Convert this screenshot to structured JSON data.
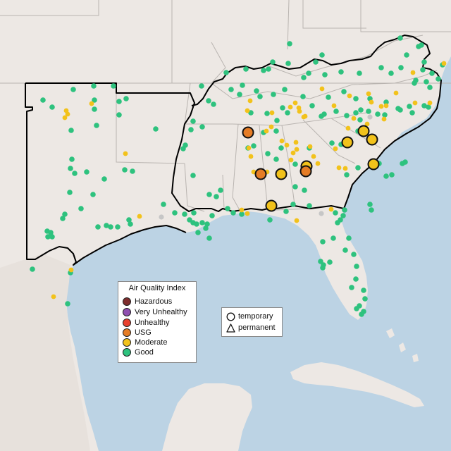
{
  "aqi_legend": {
    "title": "Air Quality Index",
    "items": [
      {
        "label": "Hazardous",
        "color": "#7e2d2d"
      },
      {
        "label": "Very Unhealthy",
        "color": "#8f4fb0"
      },
      {
        "label": "Unhealthy",
        "color": "#e8402e"
      },
      {
        "label": "USG",
        "color": "#e57c25"
      },
      {
        "label": "Moderate",
        "color": "#f2c21b"
      },
      {
        "label": "Good",
        "color": "#2ec27e"
      }
    ]
  },
  "type_legend": {
    "items": [
      {
        "label": "temporary",
        "shape": "circle-icon"
      },
      {
        "label": "permanent",
        "shape": "triangle-icon"
      }
    ]
  },
  "colors": {
    "water": "#bcd3e4",
    "land": "#ede8e4",
    "state_border": "#b9b4b0",
    "region_outline": "#000000",
    "no_data": "#c6c6c6"
  }
}
